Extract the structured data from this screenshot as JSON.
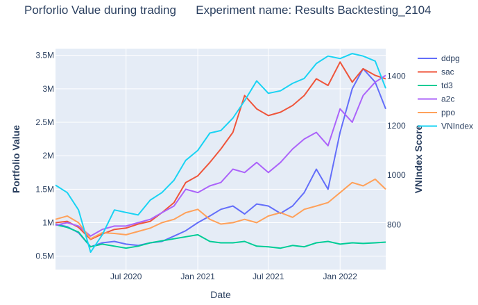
{
  "chart_data": {
    "type": "line",
    "title": "Porforlio Value during trading      Experiment name: Results Backtesting_2104",
    "xlabel": "Date",
    "ylabel": "Portfolio Value",
    "y2label": "VNIndex Score",
    "x_ticks": [
      {
        "date": "2020-07-01",
        "label": "Jul 2020"
      },
      {
        "date": "2021-01-01",
        "label": "Jan 2021"
      },
      {
        "date": "2021-07-01",
        "label": "Jul 2021"
      },
      {
        "date": "2022-01-01",
        "label": "Jan 2022"
      }
    ],
    "xlim": [
      "2020-01-02",
      "2022-04-28"
    ],
    "y_ticks": [
      {
        "value": 500000,
        "label": "0.5M"
      },
      {
        "value": 1000000,
        "label": "1M"
      },
      {
        "value": 1500000,
        "label": "1.5M"
      },
      {
        "value": 2000000,
        "label": "2M"
      },
      {
        "value": 2500000,
        "label": "2.5M"
      },
      {
        "value": 3000000,
        "label": "3M"
      },
      {
        "value": 3500000,
        "label": "3.5M"
      }
    ],
    "ylim": [
      300000,
      3600000
    ],
    "y2_ticks": [
      {
        "value": 800,
        "label": "800"
      },
      {
        "value": 1000,
        "label": "1000"
      },
      {
        "value": 1200,
        "label": "1200"
      },
      {
        "value": 1400,
        "label": "1400"
      }
    ],
    "y2lim": [
      620,
      1510
    ],
    "grid": true,
    "legend_position": "right",
    "series": [
      {
        "name": "ddpg",
        "color": "#636efa",
        "axis": "y",
        "x": [
          "2020-01-02",
          "2020-02-01",
          "2020-03-01",
          "2020-04-01",
          "2020-05-01",
          "2020-06-01",
          "2020-07-01",
          "2020-08-01",
          "2020-09-01",
          "2020-10-01",
          "2020-11-01",
          "2020-12-01",
          "2021-01-01",
          "2021-02-01",
          "2021-03-01",
          "2021-04-01",
          "2021-05-01",
          "2021-06-01",
          "2021-07-01",
          "2021-08-01",
          "2021-09-01",
          "2021-10-01",
          "2021-11-01",
          "2021-12-01",
          "2022-01-01",
          "2022-02-01",
          "2022-03-01",
          "2022-04-01",
          "2022-04-28"
        ],
        "y": [
          980000,
          940000,
          850000,
          640000,
          700000,
          720000,
          680000,
          660000,
          700000,
          720000,
          800000,
          880000,
          1000000,
          1100000,
          1200000,
          1250000,
          1130000,
          1280000,
          1250000,
          1140000,
          1250000,
          1450000,
          1800000,
          1500000,
          2350000,
          3000000,
          3300000,
          3100000,
          2700000
        ]
      },
      {
        "name": "sac",
        "color": "#ef553b",
        "axis": "y",
        "x": [
          "2020-01-02",
          "2020-02-01",
          "2020-03-01",
          "2020-04-01",
          "2020-05-01",
          "2020-06-01",
          "2020-07-01",
          "2020-08-01",
          "2020-09-01",
          "2020-10-01",
          "2020-11-01",
          "2020-12-01",
          "2021-01-01",
          "2021-02-01",
          "2021-03-01",
          "2021-04-01",
          "2021-05-01",
          "2021-06-01",
          "2021-07-01",
          "2021-08-01",
          "2021-09-01",
          "2021-10-01",
          "2021-11-01",
          "2021-12-01",
          "2022-01-01",
          "2022-02-01",
          "2022-03-01",
          "2022-04-01",
          "2022-04-28"
        ],
        "y": [
          1000000,
          1020000,
          930000,
          750000,
          830000,
          900000,
          920000,
          980000,
          1020000,
          1150000,
          1300000,
          1600000,
          1700000,
          1900000,
          2100000,
          2350000,
          2900000,
          2700000,
          2600000,
          2650000,
          2750000,
          2900000,
          3150000,
          3050000,
          3400000,
          3100000,
          3300000,
          3200000,
          3150000
        ]
      },
      {
        "name": "td3",
        "color": "#00cc96",
        "axis": "y",
        "x": [
          "2020-01-02",
          "2020-02-01",
          "2020-03-01",
          "2020-04-01",
          "2020-05-01",
          "2020-06-01",
          "2020-07-01",
          "2020-08-01",
          "2020-09-01",
          "2020-10-01",
          "2020-11-01",
          "2020-12-01",
          "2021-01-01",
          "2021-02-01",
          "2021-03-01",
          "2021-04-01",
          "2021-05-01",
          "2021-06-01",
          "2021-07-01",
          "2021-08-01",
          "2021-09-01",
          "2021-10-01",
          "2021-11-01",
          "2021-12-01",
          "2022-01-01",
          "2022-02-01",
          "2022-03-01",
          "2022-04-01",
          "2022-04-28"
        ],
        "y": [
          970000,
          930000,
          860000,
          640000,
          680000,
          650000,
          620000,
          650000,
          700000,
          730000,
          760000,
          790000,
          820000,
          720000,
          700000,
          700000,
          720000,
          650000,
          640000,
          620000,
          660000,
          640000,
          700000,
          720000,
          680000,
          700000,
          690000,
          700000,
          710000
        ]
      },
      {
        "name": "a2c",
        "color": "#ab63fa",
        "axis": "y",
        "x": [
          "2020-01-02",
          "2020-02-01",
          "2020-03-01",
          "2020-04-01",
          "2020-05-01",
          "2020-06-01",
          "2020-07-01",
          "2020-08-01",
          "2020-09-01",
          "2020-10-01",
          "2020-11-01",
          "2020-12-01",
          "2021-01-01",
          "2021-02-01",
          "2021-03-01",
          "2021-04-01",
          "2021-05-01",
          "2021-06-01",
          "2021-07-01",
          "2021-08-01",
          "2021-09-01",
          "2021-10-01",
          "2021-11-01",
          "2021-12-01",
          "2022-01-01",
          "2022-02-01",
          "2022-03-01",
          "2022-04-01",
          "2022-04-28"
        ],
        "y": [
          960000,
          1000000,
          950000,
          800000,
          900000,
          950000,
          950000,
          1000000,
          1050000,
          1150000,
          1250000,
          1500000,
          1450000,
          1550000,
          1600000,
          1800000,
          1750000,
          1900000,
          1750000,
          1900000,
          2100000,
          2250000,
          2350000,
          2150000,
          2700000,
          2500000,
          2900000,
          3100000,
          3200000
        ]
      },
      {
        "name": "ppo",
        "color": "#ffa15a",
        "axis": "y",
        "x": [
          "2020-01-02",
          "2020-02-01",
          "2020-03-01",
          "2020-04-01",
          "2020-05-01",
          "2020-06-01",
          "2020-07-01",
          "2020-08-01",
          "2020-09-01",
          "2020-10-01",
          "2020-11-01",
          "2020-12-01",
          "2021-01-01",
          "2021-02-01",
          "2021-03-01",
          "2021-04-01",
          "2021-05-01",
          "2021-06-01",
          "2021-07-01",
          "2021-08-01",
          "2021-09-01",
          "2021-10-01",
          "2021-11-01",
          "2021-12-01",
          "2022-01-01",
          "2022-02-01",
          "2022-03-01",
          "2022-04-01",
          "2022-04-28"
        ],
        "y": [
          1050000,
          1100000,
          1000000,
          760000,
          850000,
          840000,
          820000,
          870000,
          920000,
          1000000,
          1050000,
          1150000,
          1200000,
          1050000,
          980000,
          1000000,
          1050000,
          1000000,
          1100000,
          1150000,
          1080000,
          1200000,
          1250000,
          1300000,
          1450000,
          1600000,
          1550000,
          1650000,
          1500000
        ]
      },
      {
        "name": "VNIndex",
        "color": "#19d3f3",
        "axis": "y2",
        "x": [
          "2020-01-02",
          "2020-02-01",
          "2020-03-01",
          "2020-04-01",
          "2020-05-01",
          "2020-06-01",
          "2020-07-01",
          "2020-08-01",
          "2020-09-01",
          "2020-10-01",
          "2020-11-01",
          "2020-12-01",
          "2021-01-01",
          "2021-02-01",
          "2021-03-01",
          "2021-04-01",
          "2021-05-01",
          "2021-06-01",
          "2021-07-01",
          "2021-08-01",
          "2021-09-01",
          "2021-10-01",
          "2021-11-01",
          "2021-12-01",
          "2022-01-01",
          "2022-02-01",
          "2022-03-01",
          "2022-04-01",
          "2022-04-28"
        ],
        "y": [
          960,
          930,
          860,
          690,
          760,
          860,
          850,
          840,
          900,
          930,
          980,
          1060,
          1100,
          1170,
          1180,
          1230,
          1300,
          1380,
          1330,
          1340,
          1370,
          1390,
          1450,
          1480,
          1470,
          1490,
          1480,
          1460,
          1350
        ]
      }
    ]
  }
}
